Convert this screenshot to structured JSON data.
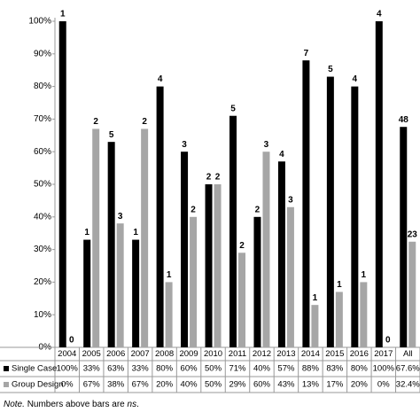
{
  "chart_data": {
    "type": "bar",
    "categories": [
      "2004",
      "2005",
      "2006",
      "2007",
      "2008",
      "2009",
      "2010",
      "2011",
      "2012",
      "2013",
      "2014",
      "2015",
      "2016",
      "2017",
      "All"
    ],
    "series": [
      {
        "name": "Single Case",
        "color": "#000000",
        "values": [
          100,
          33,
          63,
          33,
          80,
          60,
          50,
          71,
          40,
          57,
          88,
          83,
          80,
          100,
          67.6
        ],
        "value_labels": [
          "100%",
          "33%",
          "63%",
          "33%",
          "80%",
          "60%",
          "50%",
          "71%",
          "40%",
          "57%",
          "88%",
          "83%",
          "80%",
          "100%",
          "67.6%"
        ],
        "n": [
          1,
          1,
          5,
          1,
          4,
          3,
          2,
          5,
          2,
          4,
          7,
          5,
          4,
          4,
          48
        ]
      },
      {
        "name": "Group Design",
        "color": "#a6a6a6",
        "values": [
          0,
          67,
          38,
          67,
          20,
          40,
          50,
          29,
          60,
          43,
          13,
          17,
          20,
          0,
          32.4
        ],
        "value_labels": [
          "0%",
          "67%",
          "38%",
          "67%",
          "20%",
          "40%",
          "50%",
          "29%",
          "60%",
          "43%",
          "13%",
          "17%",
          "20%",
          "0%",
          "32.4%"
        ],
        "n": [
          0,
          2,
          3,
          2,
          1,
          2,
          2,
          2,
          3,
          3,
          1,
          1,
          1,
          0,
          23
        ]
      }
    ],
    "ylim": [
      0,
      100
    ],
    "yticks": [
      {
        "value": 0,
        "label": "0%"
      },
      {
        "value": 10,
        "label": "10%"
      },
      {
        "value": 20,
        "label": "20%"
      },
      {
        "value": 30,
        "label": "30%"
      },
      {
        "value": 40,
        "label": "40%"
      },
      {
        "value": 50,
        "label": "50%"
      },
      {
        "value": 60,
        "label": "60%"
      },
      {
        "value": 70,
        "label": "70%"
      },
      {
        "value": 80,
        "label": "80%"
      },
      {
        "value": 90,
        "label": "90%"
      },
      {
        "value": 100,
        "label": "100%"
      }
    ],
    "note": [
      "Note.",
      "Numbers above bars are",
      "ns",
      "."
    ]
  }
}
